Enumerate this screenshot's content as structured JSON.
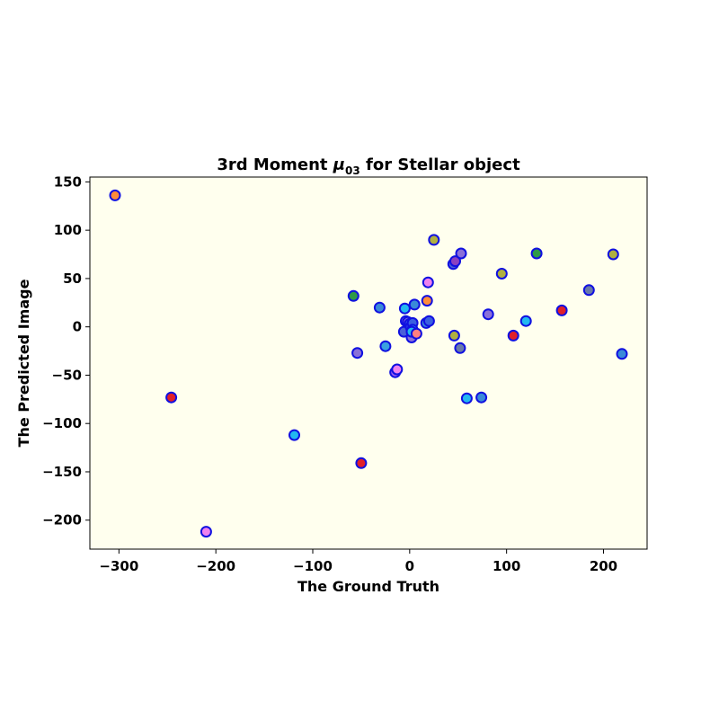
{
  "chart_data": {
    "type": "scatter",
    "title": {
      "prefix": "3rd Moment ",
      "mu": "μ",
      "subscript": "03",
      "suffix": " for Stellar object"
    },
    "xlabel": "The Ground Truth",
    "ylabel": "The Predicted Image",
    "xlim": [
      -330,
      245
    ],
    "ylim": [
      -230,
      155
    ],
    "xticks": [
      -300,
      -200,
      -100,
      0,
      100,
      200
    ],
    "yticks": [
      -200,
      -150,
      -100,
      -50,
      0,
      50,
      100,
      150
    ],
    "xtick_labels": [
      "−300",
      "−200",
      "−100",
      "0",
      "100",
      "200"
    ],
    "ytick_labels": [
      "−200",
      "−150",
      "−100",
      "−50",
      "0",
      "50",
      "100",
      "150"
    ],
    "grid": false,
    "legend": "none",
    "colors": {
      "plot_background": "#ffffee",
      "marker_edge": "#1010e0"
    },
    "points": [
      {
        "x": -304,
        "y": 136,
        "color": "#ff8c3a"
      },
      {
        "x": -246,
        "y": -73,
        "color": "#e0202a"
      },
      {
        "x": -210,
        "y": -212,
        "color": "#ee82ee"
      },
      {
        "x": -119,
        "y": -112,
        "color": "#22b8f0"
      },
      {
        "x": -58,
        "y": 32,
        "color": "#2e9a48"
      },
      {
        "x": -54,
        "y": -27,
        "color": "#8a70d8"
      },
      {
        "x": -50,
        "y": -141,
        "color": "#e0202a"
      },
      {
        "x": -31,
        "y": 20,
        "color": "#3a8ad8"
      },
      {
        "x": -25,
        "y": -20,
        "color": "#3aa0e0"
      },
      {
        "x": -15,
        "y": -47,
        "color": "#9a5cf0"
      },
      {
        "x": -13,
        "y": -44,
        "color": "#ee82ee"
      },
      {
        "x": -6,
        "y": -5,
        "color": "#4a60d8"
      },
      {
        "x": -5,
        "y": 19,
        "color": "#22b8f0"
      },
      {
        "x": -4,
        "y": 6,
        "color": "#9a5cf0"
      },
      {
        "x": -2,
        "y": 5,
        "color": "#8a70d8"
      },
      {
        "x": 0,
        "y": 3,
        "color": "#3a60e0"
      },
      {
        "x": 1,
        "y": 0,
        "color": "#2a40e8"
      },
      {
        "x": 2,
        "y": -11,
        "color": "#8a70d8"
      },
      {
        "x": 3,
        "y": 4,
        "color": "#3a60e0"
      },
      {
        "x": 3,
        "y": -3,
        "color": "#22b8f0"
      },
      {
        "x": 2,
        "y": -5,
        "color": "#22b8f0"
      },
      {
        "x": 5,
        "y": 23,
        "color": "#3a8ad8"
      },
      {
        "x": 7,
        "y": -7,
        "color": "#ff8080"
      },
      {
        "x": 17,
        "y": 4,
        "color": "#3a8ad8"
      },
      {
        "x": 18,
        "y": 27,
        "color": "#ff8c3a"
      },
      {
        "x": 19,
        "y": 46,
        "color": "#ee82ee"
      },
      {
        "x": 20,
        "y": 6,
        "color": "#3a60e0"
      },
      {
        "x": 25,
        "y": 90,
        "color": "#b0b040"
      },
      {
        "x": 45,
        "y": 65,
        "color": "#4a60d8"
      },
      {
        "x": 46,
        "y": -9,
        "color": "#b0b040"
      },
      {
        "x": 47,
        "y": 68,
        "color": "#8a40c0"
      },
      {
        "x": 52,
        "y": -22,
        "color": "#6a7aaa"
      },
      {
        "x": 53,
        "y": 76,
        "color": "#8a70d8"
      },
      {
        "x": 59,
        "y": -74,
        "color": "#22b8f0"
      },
      {
        "x": 74,
        "y": -73,
        "color": "#3a8ad8"
      },
      {
        "x": 81,
        "y": 13,
        "color": "#8a70d8"
      },
      {
        "x": 95,
        "y": 55,
        "color": "#b0b040"
      },
      {
        "x": 107,
        "y": -9,
        "color": "#e0202a"
      },
      {
        "x": 120,
        "y": 6,
        "color": "#22b8f0"
      },
      {
        "x": 131,
        "y": 76,
        "color": "#2e9a48"
      },
      {
        "x": 157,
        "y": 17,
        "color": "#e0202a"
      },
      {
        "x": 185,
        "y": 38,
        "color": "#6a7aaa"
      },
      {
        "x": 210,
        "y": 75,
        "color": "#b0b040"
      },
      {
        "x": 219,
        "y": -28,
        "color": "#3a8ad8"
      }
    ]
  }
}
